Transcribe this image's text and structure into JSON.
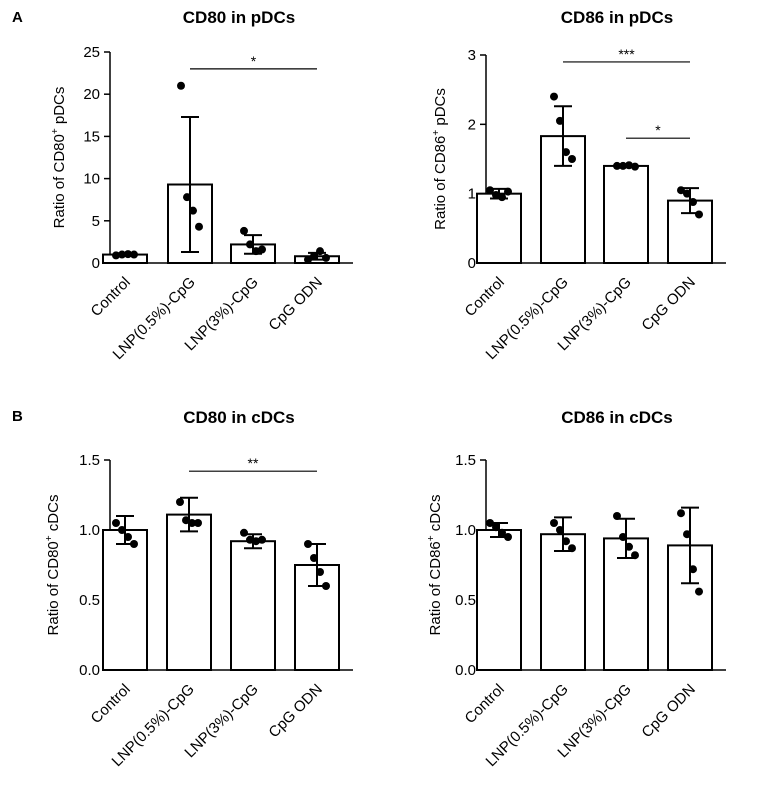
{
  "figure": {
    "panel_labels": [
      "A",
      "B"
    ]
  },
  "chart_data": [
    {
      "type": "bar",
      "panel": "A",
      "title": "CD80 in pDCs",
      "ylabel_pre": "Ratio of CD80",
      "ylabel_sup": "+",
      "ylabel_post": " pDCs",
      "xlabel": "",
      "categories": [
        "Control",
        "LNP(0.5%)-CpG",
        "LNP(3%)-CpG",
        "CpG ODN"
      ],
      "values": [
        1.0,
        9.3,
        2.2,
        0.8
      ],
      "errors": [
        0.15,
        8.0,
        1.1,
        0.4
      ],
      "points": [
        [
          0.9,
          1.0,
          1.05,
          1.0
        ],
        [
          21.0,
          7.8,
          6.2,
          4.3
        ],
        [
          3.8,
          2.2,
          1.4,
          1.6
        ],
        [
          0.4,
          0.8,
          1.4,
          0.6
        ]
      ],
      "ylim": [
        0,
        25
      ],
      "yticks": [
        0,
        5,
        10,
        15,
        20,
        25
      ],
      "significance": [
        {
          "from": 1,
          "to": 3,
          "label": "*",
          "y": 23
        }
      ]
    },
    {
      "type": "bar",
      "panel": "",
      "title": "CD86 in pDCs",
      "ylabel_pre": "Ratio of CD86",
      "ylabel_sup": "+",
      "ylabel_post": " pDCs",
      "xlabel": "",
      "categories": [
        "Control",
        "LNP(0.5%)-CpG",
        "LNP(3%)-CpG",
        "CpG ODN"
      ],
      "values": [
        1.0,
        1.83,
        1.4,
        0.9
      ],
      "errors": [
        0.07,
        0.43,
        0.02,
        0.18
      ],
      "points": [
        [
          1.05,
          0.98,
          0.95,
          1.03
        ],
        [
          2.4,
          2.05,
          1.6,
          1.5
        ],
        [
          1.4,
          1.4,
          1.41,
          1.39
        ],
        [
          1.05,
          1.0,
          0.88,
          0.7
        ]
      ],
      "ylim": [
        0,
        3
      ],
      "yticks": [
        0,
        1,
        2,
        3
      ],
      "significance": [
        {
          "from": 1,
          "to": 3,
          "label": "***",
          "y": 2.9
        },
        {
          "from": 2,
          "to": 3,
          "label": "*",
          "y": 1.8
        }
      ]
    },
    {
      "type": "bar",
      "panel": "B",
      "title": "CD80 in cDCs",
      "ylabel_pre": "Ratio of CD80",
      "ylabel_sup": "+",
      "ylabel_post": " cDCs",
      "xlabel": "",
      "categories": [
        "Control",
        "LNP(0.5%)-CpG",
        "LNP(3%)-CpG",
        "CpG ODN"
      ],
      "values": [
        1.0,
        1.11,
        0.92,
        0.75
      ],
      "errors": [
        0.1,
        0.12,
        0.05,
        0.15
      ],
      "points": [
        [
          1.05,
          1.0,
          0.95,
          0.9
        ],
        [
          1.2,
          1.07,
          1.05,
          1.05
        ],
        [
          0.98,
          0.93,
          0.92,
          0.93
        ],
        [
          0.9,
          0.8,
          0.7,
          0.6
        ]
      ],
      "ylim": [
        0,
        1.5
      ],
      "yticks": [
        0.0,
        0.5,
        1.0,
        1.5
      ],
      "significance": [
        {
          "from": 1,
          "to": 3,
          "label": "**",
          "y": 1.42
        }
      ]
    },
    {
      "type": "bar",
      "panel": "",
      "title": "CD86 in cDCs",
      "ylabel_pre": "Ratio of CD86",
      "ylabel_sup": "+",
      "ylabel_post": " cDCs",
      "xlabel": "",
      "categories": [
        "Control",
        "LNP(0.5%)-CpG",
        "LNP(3%)-CpG",
        "CpG ODN"
      ],
      "values": [
        1.0,
        0.97,
        0.94,
        0.89
      ],
      "errors": [
        0.05,
        0.12,
        0.14,
        0.27
      ],
      "points": [
        [
          1.05,
          1.02,
          0.98,
          0.95
        ],
        [
          1.05,
          1.0,
          0.92,
          0.87
        ],
        [
          1.1,
          0.95,
          0.88,
          0.82
        ],
        [
          1.12,
          0.97,
          0.72,
          0.56
        ]
      ],
      "ylim": [
        0,
        1.5
      ],
      "yticks": [
        0.0,
        0.5,
        1.0,
        1.5
      ],
      "significance": []
    }
  ]
}
